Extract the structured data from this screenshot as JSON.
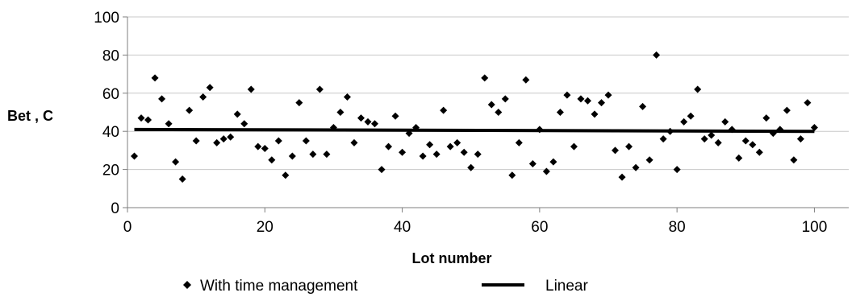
{
  "chart_data": {
    "type": "scatter",
    "xlabel": "Lot number",
    "ylabel": "Bet , C",
    "xlim": [
      0,
      105
    ],
    "ylim": [
      0,
      100
    ],
    "x_ticks": [
      0,
      20,
      40,
      60,
      80,
      100
    ],
    "y_ticks": [
      0,
      20,
      40,
      60,
      80,
      100
    ],
    "grid": "horizontal",
    "legend_position": "bottom",
    "colors": {
      "points": "#000000",
      "trend": "#000000",
      "grid": "#c8c8c8",
      "axis": "#7f7f7f"
    },
    "series": [
      {
        "name": "With time management",
        "marker": "diamond",
        "x": [
          1,
          2,
          3,
          4,
          5,
          6,
          7,
          8,
          9,
          10,
          11,
          12,
          13,
          14,
          15,
          16,
          17,
          18,
          19,
          20,
          21,
          22,
          23,
          24,
          25,
          26,
          27,
          28,
          29,
          30,
          31,
          32,
          33,
          34,
          35,
          36,
          37,
          38,
          39,
          40,
          41,
          42,
          43,
          44,
          45,
          46,
          47,
          48,
          49,
          50,
          51,
          52,
          53,
          54,
          55,
          56,
          57,
          58,
          59,
          60,
          61,
          62,
          63,
          64,
          65,
          66,
          67,
          68,
          69,
          70,
          71,
          72,
          73,
          74,
          75,
          76,
          77,
          78,
          79,
          80,
          81,
          82,
          83,
          84,
          85,
          86,
          87,
          88,
          89,
          90,
          91,
          92,
          93,
          94,
          95,
          96,
          97,
          98,
          99,
          100
        ],
        "y": [
          27,
          47,
          46,
          68,
          57,
          44,
          24,
          15,
          51,
          35,
          58,
          63,
          34,
          36,
          37,
          49,
          44,
          62,
          32,
          31,
          25,
          35,
          17,
          27,
          55,
          35,
          28,
          62,
          28,
          42,
          50,
          58,
          34,
          47,
          45,
          44,
          20,
          32,
          48,
          29,
          39,
          42,
          27,
          33,
          28,
          51,
          32,
          34,
          29,
          21,
          28,
          68,
          54,
          50,
          57,
          17,
          34,
          67,
          23,
          41,
          19,
          24,
          50,
          59,
          32,
          57,
          56,
          49,
          55,
          59,
          30,
          16,
          32,
          21,
          53,
          25,
          80,
          36,
          40,
          20,
          45,
          48,
          62,
          36,
          38,
          34,
          45,
          41,
          26,
          35,
          33,
          29,
          47,
          39,
          41,
          51,
          25,
          36,
          55,
          42
        ]
      },
      {
        "name": "Linear",
        "type": "line",
        "x": [
          1,
          100
        ],
        "y": [
          41,
          40
        ]
      }
    ]
  }
}
